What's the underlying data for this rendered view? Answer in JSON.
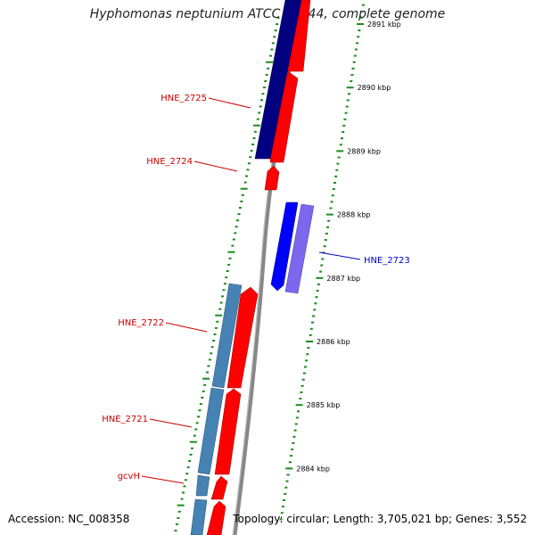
{
  "title": "Hyphomonas neptunium ATCC 15444, complete genome",
  "accession": "Accession: NC_008358",
  "summary": "Topology: circular; Length: 3,705,021 bp; Genes: 3,552",
  "colors": {
    "backbone": "#888888",
    "tick": "#1a8a1a",
    "forward_gene": "#ff0000",
    "label_red": "#cc0000",
    "label_blue": "#0000cc",
    "gene_navy": "#000080",
    "gene_blue": "#0000ff",
    "gene_lavender": "#7b68ee",
    "gene_steel": "#4682b4"
  },
  "scale_labels": [
    {
      "text": "2891 kbp",
      "kbp": 2891
    },
    {
      "text": "2890 kbp",
      "kbp": 2890
    },
    {
      "text": "2889 kbp",
      "kbp": 2889
    },
    {
      "text": "2888 kbp",
      "kbp": 2888
    },
    {
      "text": "2887 kbp",
      "kbp": 2887
    },
    {
      "text": "2886 kbp",
      "kbp": 2886
    },
    {
      "text": "2885 kbp",
      "kbp": 2885
    },
    {
      "text": "2884 kbp",
      "kbp": 2884
    }
  ],
  "gene_labels": [
    {
      "text": "HNE_2725",
      "color": "red"
    },
    {
      "text": "HNE_2724",
      "color": "red"
    },
    {
      "text": "HNE_2723",
      "color": "blue"
    },
    {
      "text": "HNE_2722",
      "color": "red"
    },
    {
      "text": "HNE_2721",
      "color": "red"
    },
    {
      "text": "gcvH",
      "color": "red"
    }
  ],
  "cog_legend": [
    "navy",
    "blue",
    "lavender",
    "steel"
  ]
}
